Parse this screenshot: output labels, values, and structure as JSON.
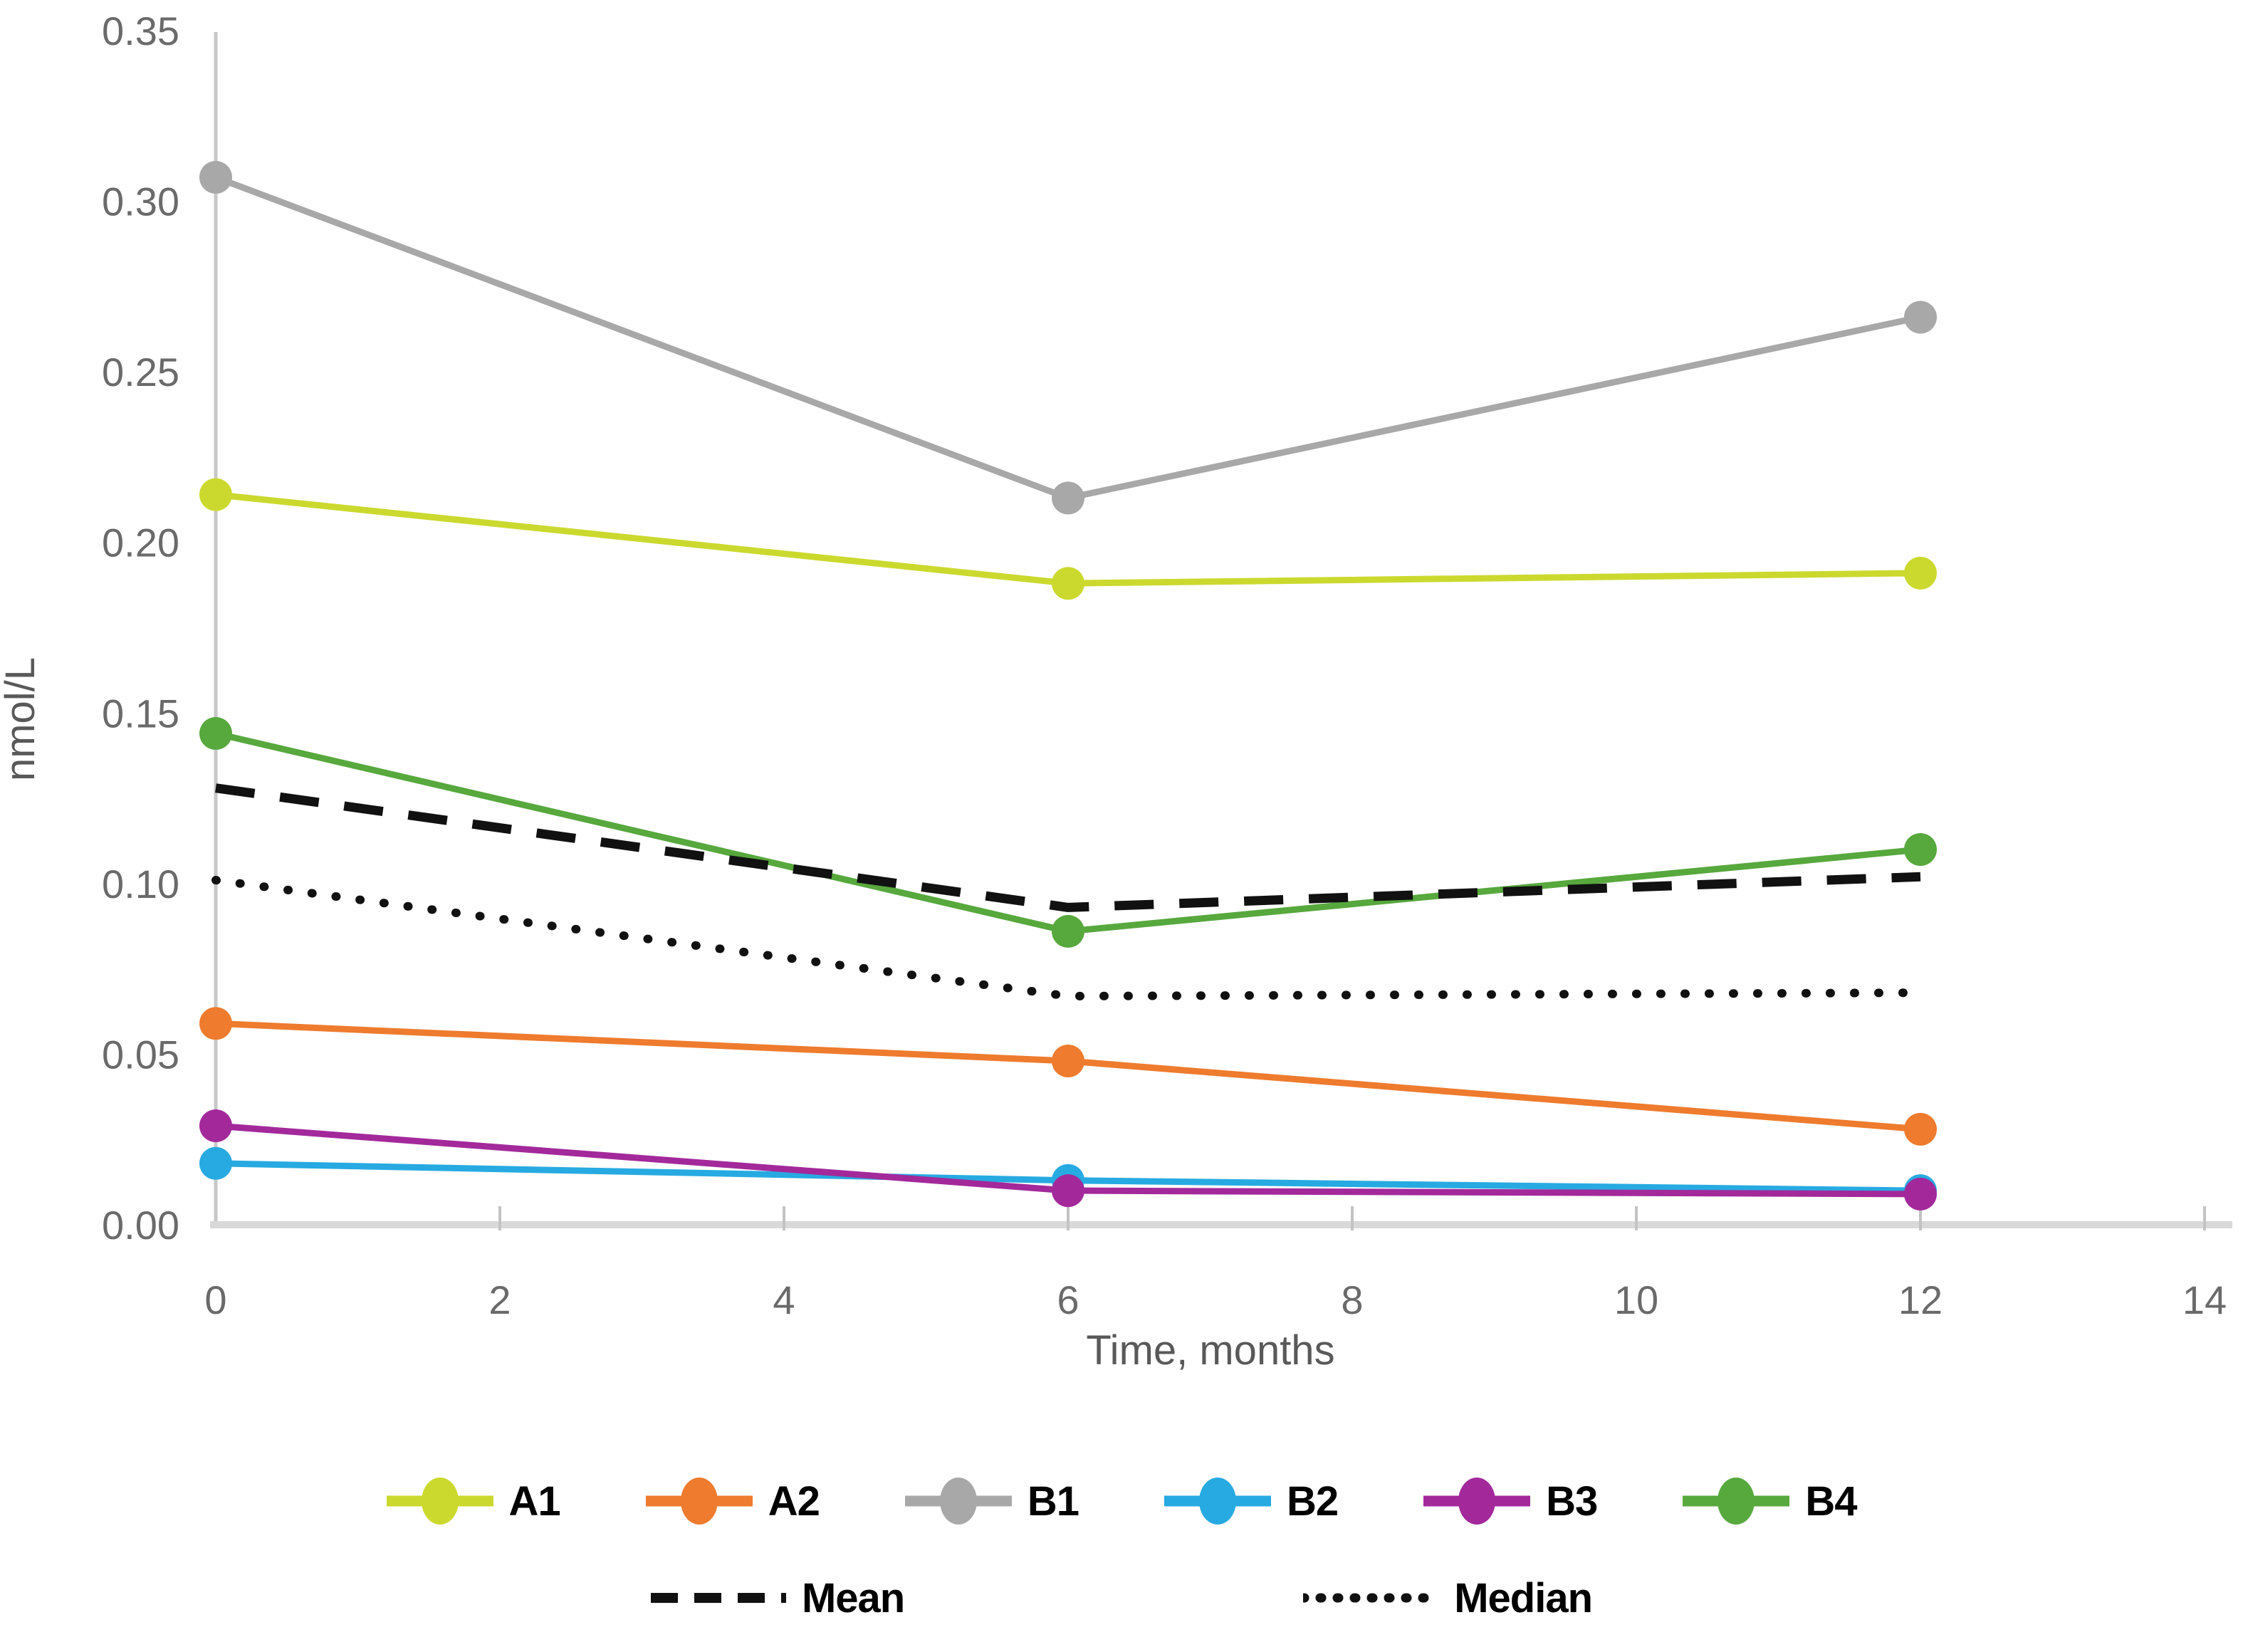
{
  "chart_data": {
    "type": "line",
    "title": "",
    "xlabel": "Time, months",
    "ylabel": "nmol/L",
    "x": [
      0,
      6,
      12
    ],
    "xlim": [
      0,
      14
    ],
    "ylim": [
      0,
      0.35
    ],
    "x_tick_labels": [
      "0",
      "2",
      "4",
      "6",
      "8",
      "10",
      "12",
      "14"
    ],
    "x_tick_values": [
      0,
      2,
      4,
      6,
      8,
      10,
      12,
      14
    ],
    "y_tick_labels": [
      "0.00",
      "0.05",
      "0.10",
      "0.15",
      "0.20",
      "0.25",
      "0.30",
      "0.35"
    ],
    "y_tick_values": [
      0,
      0.05,
      0.1,
      0.15,
      0.2,
      0.25,
      0.3,
      0.35
    ],
    "grid": false,
    "legend_position": "bottom",
    "series": [
      {
        "name": "A1",
        "color": "#cbd92e",
        "style": "solid",
        "marker": "circle",
        "values": [
          0.214,
          0.188,
          0.191
        ]
      },
      {
        "name": "A2",
        "color": "#ee7b2e",
        "style": "solid",
        "marker": "circle",
        "values": [
          0.059,
          0.048,
          0.028
        ]
      },
      {
        "name": "B1",
        "color": "#a8a8a8",
        "style": "solid",
        "marker": "circle",
        "values": [
          0.307,
          0.213,
          0.266
        ]
      },
      {
        "name": "B2",
        "color": "#27aae1",
        "style": "solid",
        "marker": "circle",
        "values": [
          0.018,
          0.013,
          0.01
        ]
      },
      {
        "name": "B3",
        "color": "#a3299b",
        "style": "solid",
        "marker": "circle",
        "values": [
          0.029,
          0.01,
          0.009
        ]
      },
      {
        "name": "B4",
        "color": "#57a83d",
        "style": "solid",
        "marker": "circle",
        "values": [
          0.144,
          0.086,
          0.11
        ]
      }
    ],
    "stat_series": [
      {
        "name": "Mean",
        "color": "#111111",
        "style": "dashed",
        "values": [
          0.128,
          0.093,
          0.102
        ]
      },
      {
        "name": "Median",
        "color": "#111111",
        "style": "dotted",
        "values": [
          0.101,
          0.067,
          0.068
        ]
      }
    ],
    "colors": {
      "axis_line": "#c7c7c7",
      "x_axis_line": "#d9d9d9",
      "tick_mark": "#c3c3c3",
      "tick_label": "#6a6a6a",
      "axis_title": "#595959"
    }
  }
}
